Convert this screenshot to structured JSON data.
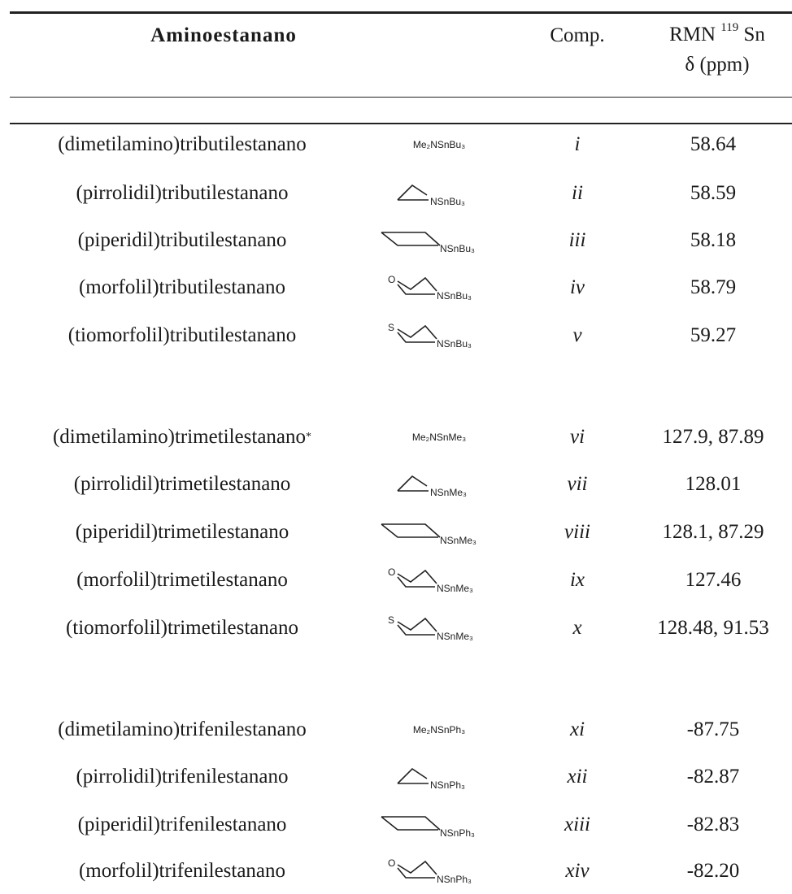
{
  "header": {
    "name": "Aminoestanano",
    "comp": "Comp.",
    "rmn_prefix": "RMN ",
    "rmn_sup": "119",
    "rmn_suffix": " Sn",
    "delta": "δ (ppm)"
  },
  "rows": [
    {
      "name": "(dimetilamino)tributilestanano",
      "structure": "Me2N",
      "formula": "Me₂NSnBu₃",
      "label": "NSnBu₃",
      "comp": "i",
      "nmr": "58.64",
      "note": ""
    },
    {
      "name": "(pirrolidil)tributilestanano",
      "structure": "pyrrolidine",
      "formula": "",
      "label": "NSnBu₃",
      "comp": "ii",
      "nmr": "58.59",
      "note": ""
    },
    {
      "name": "(piperidil)tributilestanano",
      "structure": "piperidine",
      "formula": "",
      "label": "NSnBu₃",
      "comp": "iii",
      "nmr": "58.18",
      "note": ""
    },
    {
      "name": "(morfolil)tributilestanano",
      "structure": "morpholine",
      "formula": "",
      "label": "NSnBu₃",
      "comp": "iv",
      "nmr": "58.79",
      "note": ""
    },
    {
      "name": "(tiomorfolil)tributilestanano",
      "structure": "thiomorpholine",
      "formula": "",
      "label": "NSnBu₃",
      "comp": "v",
      "nmr": "59.27",
      "note": ""
    },
    {
      "name": "(dimetilamino)trimetilestanano",
      "structure": "Me2N",
      "formula": "Me₂NSnMe₃",
      "label": "NSnMe₃",
      "comp": "vi",
      "nmr": "127.9, 87.89",
      "note": "*"
    },
    {
      "name": "(pirrolidil)trimetilestanano",
      "structure": "pyrrolidine",
      "formula": "",
      "label": "NSnMe₃",
      "comp": "vii",
      "nmr": "128.01",
      "note": ""
    },
    {
      "name": "(piperidil)trimetilestanano",
      "structure": "piperidine",
      "formula": "",
      "label": "NSnMe₃",
      "comp": "viii",
      "nmr": "128.1, 87.29",
      "note": ""
    },
    {
      "name": "(morfolil)trimetilestanano",
      "structure": "morpholine",
      "formula": "",
      "label": "NSnMe₃",
      "comp": "ix",
      "nmr": "127.46",
      "note": ""
    },
    {
      "name": "(tiomorfolil)trimetilestanano",
      "structure": "thiomorpholine",
      "formula": "",
      "label": "NSnMe₃",
      "comp": "x",
      "nmr": "128.48, 91.53",
      "note": ""
    },
    {
      "name": "(dimetilamino)trifenilestanano",
      "structure": "Me2N",
      "formula": "Me₂NSnPh₃",
      "label": "NSnPh₃",
      "comp": "xi",
      "nmr": "-87.75",
      "note": ""
    },
    {
      "name": "(pirrolidil)trifenilestanano",
      "structure": "pyrrolidine",
      "formula": "",
      "label": "NSnPh₃",
      "comp": "xii",
      "nmr": "-82.87",
      "note": ""
    },
    {
      "name": "(piperidil)trifenilestanano",
      "structure": "piperidine",
      "formula": "",
      "label": "NSnPh₃",
      "comp": "xiii",
      "nmr": "-82.83",
      "note": ""
    },
    {
      "name": "(morfolil)trifenilestanano",
      "structure": "morpholine",
      "formula": "",
      "label": "NSnPh₃",
      "comp": "xiv",
      "nmr": "-82.20",
      "note": ""
    }
  ]
}
